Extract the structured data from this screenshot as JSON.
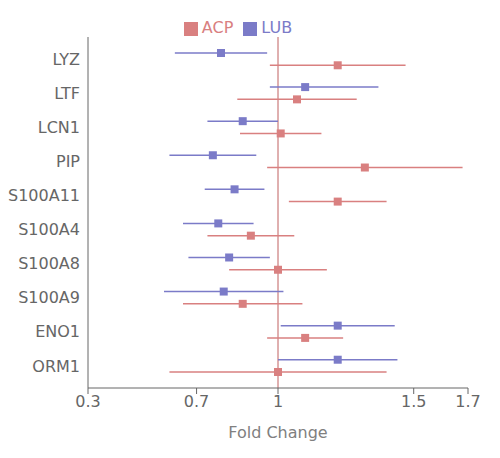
{
  "chart_data": {
    "type": "forest",
    "categories": [
      "LYZ",
      "LTF",
      "LCN1",
      "PIP",
      "S100A11",
      "S100A4",
      "S100A8",
      "S100A9",
      "ENO1",
      "ORM1"
    ],
    "series": [
      {
        "name": "LUB",
        "color": "#7B7BC8",
        "marker": "square",
        "values": [
          0.79,
          1.1,
          0.87,
          0.76,
          0.84,
          0.78,
          0.82,
          0.8,
          1.22,
          1.22
        ],
        "lo": [
          0.62,
          0.97,
          0.74,
          0.6,
          0.73,
          0.65,
          0.67,
          0.58,
          1.01,
          1.0
        ],
        "hi": [
          0.96,
          1.37,
          1.0,
          0.92,
          0.95,
          0.91,
          0.97,
          1.02,
          1.43,
          1.44
        ]
      },
      {
        "name": "ACP",
        "color": "#D98080",
        "marker": "square",
        "values": [
          1.22,
          1.07,
          1.01,
          1.32,
          1.22,
          0.9,
          1.0,
          0.87,
          1.1,
          1.0
        ],
        "lo": [
          0.97,
          0.85,
          0.86,
          0.96,
          1.04,
          0.74,
          0.82,
          0.65,
          0.96,
          0.6
        ],
        "hi": [
          1.47,
          1.29,
          1.16,
          1.68,
          1.4,
          1.06,
          1.18,
          1.09,
          1.24,
          1.4
        ]
      }
    ],
    "xlabel": "Fold Change",
    "xlim": [
      0.3,
      1.7
    ],
    "xticks": [
      0.3,
      0.7,
      1,
      1.5,
      1.7
    ],
    "reference_line": {
      "x": 1,
      "color": "#C06060"
    },
    "grid": false,
    "legend": "top"
  }
}
